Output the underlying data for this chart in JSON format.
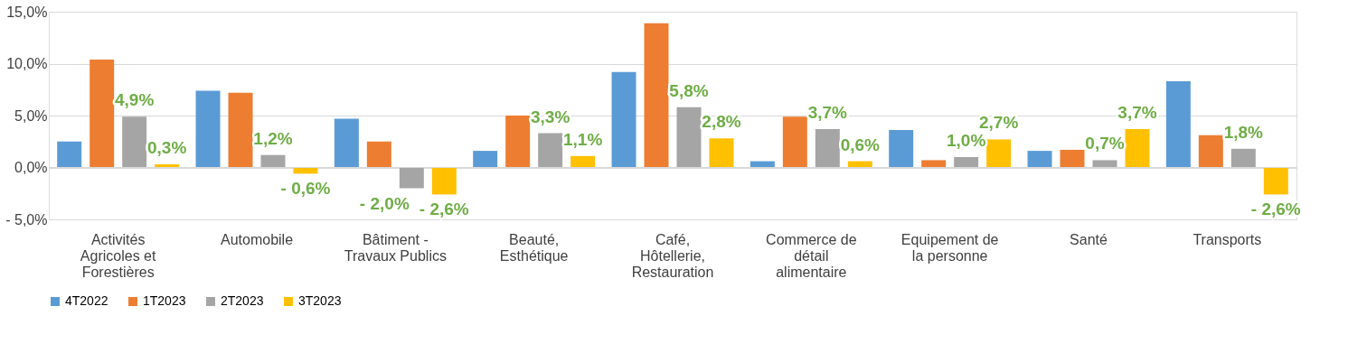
{
  "chart_data": {
    "type": "bar",
    "categories": [
      "Activités Agricoles et Forestières",
      "Automobile",
      "Bâtiment - Travaux Publics",
      "Beauté, Esthétique",
      "Café, Hôtellerie, Restauration",
      "Commerce de détail alimentaire",
      "Equipement de la personne",
      "Santé",
      "Transports"
    ],
    "series": [
      {
        "name": "4T2022",
        "color": "#5b9bd5",
        "values": [
          2.5,
          7.4,
          4.7,
          1.6,
          9.2,
          0.6,
          3.6,
          1.6,
          8.3
        ]
      },
      {
        "name": "1T2023",
        "color": "#ed7d31",
        "values": [
          10.4,
          7.2,
          2.5,
          5.0,
          13.9,
          4.9,
          0.7,
          1.7,
          3.1
        ]
      },
      {
        "name": "2T2023",
        "color": "#a5a5a5",
        "values": [
          4.9,
          1.2,
          -2.0,
          3.3,
          5.8,
          3.7,
          1.0,
          0.7,
          1.8
        ],
        "value_labels": [
          "4,9%",
          "1,2%",
          "- 2,0%",
          "3,3%",
          "5,8%",
          "3,7%",
          "1,0%",
          "0,7%",
          "1,8%"
        ]
      },
      {
        "name": "3T2023",
        "color": "#ffc000",
        "values": [
          0.3,
          -0.6,
          -2.6,
          1.1,
          2.8,
          0.6,
          2.7,
          3.7,
          -2.6
        ],
        "value_labels": [
          "0,3%",
          "- 0,6%",
          "- 2,6%",
          "1,1%",
          "2,8%",
          "0,6%",
          "2,7%",
          "3,7%",
          "- 2,6%"
        ]
      }
    ],
    "ylim": [
      -5,
      15
    ],
    "yticks": [
      {
        "value": -5,
        "label": "- 5,0%"
      },
      {
        "value": 0,
        "label": "0,0%"
      },
      {
        "value": 5,
        "label": "5,0%"
      },
      {
        "value": 10,
        "label": "10,0%"
      },
      {
        "value": 15,
        "label": "15,0%"
      }
    ],
    "grid": "y",
    "legend": "bottom"
  }
}
